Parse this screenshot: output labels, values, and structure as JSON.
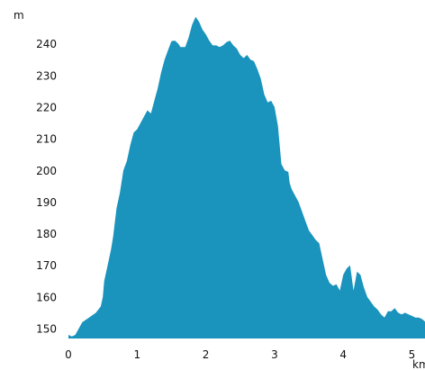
{
  "chart_data": {
    "type": "area",
    "title": "",
    "xlabel": "km",
    "ylabel": "m",
    "xlim": [
      0,
      5.2
    ],
    "ylim": [
      146,
      250
    ],
    "grid": false,
    "legend": "none",
    "color": "#1a93bd",
    "x_ticks": [
      "0",
      "1",
      "2",
      "3",
      "4",
      "5"
    ],
    "y_ticks": [
      "150",
      "160",
      "170",
      "180",
      "190",
      "200",
      "210",
      "220",
      "230",
      "240"
    ],
    "x": [
      0,
      0.05,
      0.1,
      0.2,
      0.3,
      0.4,
      0.47,
      0.5,
      0.52,
      0.55,
      0.6,
      0.62,
      0.65,
      0.7,
      0.75,
      0.8,
      0.85,
      0.9,
      0.95,
      1.0,
      1.05,
      1.1,
      1.15,
      1.2,
      1.25,
      1.3,
      1.35,
      1.4,
      1.45,
      1.5,
      1.55,
      1.6,
      1.63,
      1.7,
      1.75,
      1.8,
      1.85,
      1.9,
      1.95,
      2.0,
      2.05,
      2.1,
      2.15,
      2.2,
      2.25,
      2.3,
      2.35,
      2.4,
      2.45,
      2.5,
      2.55,
      2.6,
      2.65,
      2.7,
      2.75,
      2.8,
      2.85,
      2.9,
      2.95,
      3.0,
      3.05,
      3.1,
      3.15,
      3.2,
      3.22,
      3.25,
      3.3,
      3.35,
      3.4,
      3.45,
      3.5,
      3.55,
      3.6,
      3.65,
      3.7,
      3.75,
      3.8,
      3.85,
      3.9,
      3.95,
      4.0,
      4.05,
      4.1,
      4.15,
      4.2,
      4.25,
      4.3,
      4.35,
      4.4,
      4.45,
      4.5,
      4.55,
      4.6,
      4.65,
      4.7,
      4.75,
      4.8,
      4.85,
      4.9,
      4.95,
      5.0,
      5.05,
      5.1,
      5.15,
      5.2
    ],
    "values": [
      148,
      147.5,
      148,
      152,
      153.5,
      155,
      157,
      160,
      165,
      168,
      173,
      175,
      179,
      188,
      193,
      200,
      203,
      208,
      212,
      213,
      215,
      217,
      219,
      218,
      222,
      226,
      231,
      235,
      238,
      240.8,
      241,
      240,
      239,
      239,
      242,
      246,
      248.5,
      247,
      244.5,
      243,
      241,
      239.5,
      239.5,
      239,
      239.5,
      240.5,
      241,
      239.5,
      238.5,
      236.5,
      235.5,
      236.5,
      235,
      234.5,
      232,
      229,
      224,
      221.5,
      222,
      220,
      214,
      202,
      200,
      199.5,
      196,
      194,
      192,
      190,
      187,
      184,
      181,
      179.5,
      178,
      177,
      172,
      167,
      164.5,
      163.5,
      164,
      162,
      167,
      169,
      170,
      162,
      168,
      167,
      163,
      160,
      158.5,
      157,
      156,
      154.5,
      153.5,
      155.5,
      155.5,
      156.5,
      155,
      154.5,
      155,
      154.5,
      154,
      153.5,
      153.5,
      153,
      152
    ]
  }
}
